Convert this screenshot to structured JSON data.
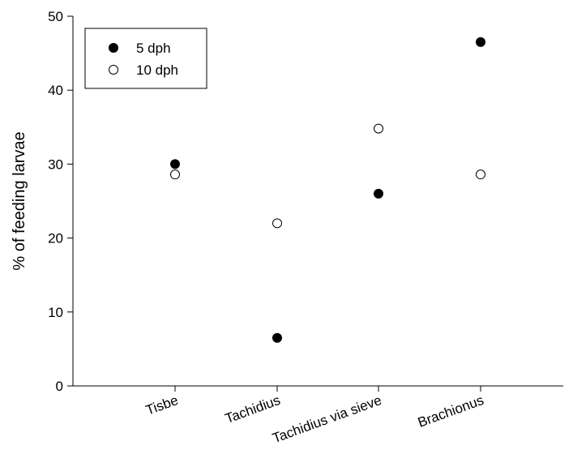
{
  "chart_data": {
    "type": "scatter",
    "title": "",
    "xlabel": "",
    "ylabel": "% of feeding larvae",
    "categories": [
      "Tisbe",
      "Tachidius",
      "Tachidius via sieve",
      "Brachionus"
    ],
    "yticks": [
      "0",
      "10",
      "20",
      "30",
      "40",
      "50"
    ],
    "ylim": [
      0,
      50
    ],
    "grid": false,
    "legend_position": "top-left",
    "series": [
      {
        "name": "5 dph",
        "marker": "filled-circle",
        "color": "#000000",
        "values": [
          30,
          6.5,
          26,
          46.5
        ]
      },
      {
        "name": "10 dph",
        "marker": "open-circle",
        "color": "#000000",
        "values": [
          28.6,
          22,
          34.8,
          28.6
        ]
      }
    ]
  }
}
